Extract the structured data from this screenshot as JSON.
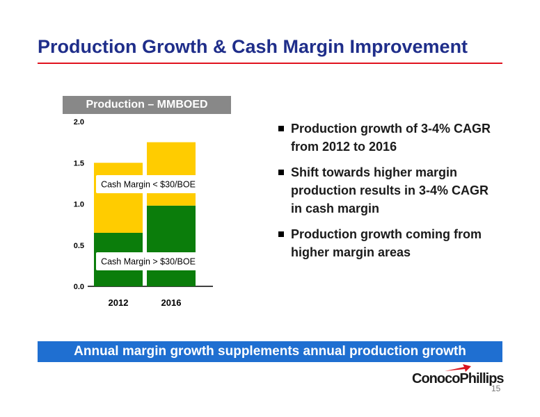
{
  "title": "Production Growth & Cash Margin Improvement",
  "chart_header": "Production – MMBOED",
  "bullets": [
    "Production growth of 3-4% CAGR from 2012 to 2016",
    "Shift towards higher margin production results in 3-4% CAGR in cash margin",
    "Production growth coming from higher margin areas"
  ],
  "banner": "Annual margin growth supplements annual production growth",
  "logo": {
    "text": "ConocoPhillips"
  },
  "page_number": "15",
  "colors": {
    "title": "#1f2e8a",
    "rule": "#e0121e",
    "green": "#0b7d0b",
    "gold": "#ffcc00",
    "banner": "#1f6fd1",
    "logo_red": "#d8141f"
  },
  "chart_data": {
    "type": "bar",
    "stacked": true,
    "categories": [
      "2012",
      "2016"
    ],
    "series": [
      {
        "name": "Cash Margin > $30/BOE",
        "values": [
          0.65,
          0.98
        ],
        "color": "#0b7d0b"
      },
      {
        "name": "Cash Margin < $30/BOE",
        "values": [
          0.85,
          0.77
        ],
        "color": "#ffcc00"
      }
    ],
    "ylim": [
      0,
      2.0
    ],
    "yticks": [
      "0.0",
      "0.5",
      "1.0",
      "1.5",
      "2.0"
    ],
    "grid": false,
    "legend": "inline labels on bars"
  }
}
